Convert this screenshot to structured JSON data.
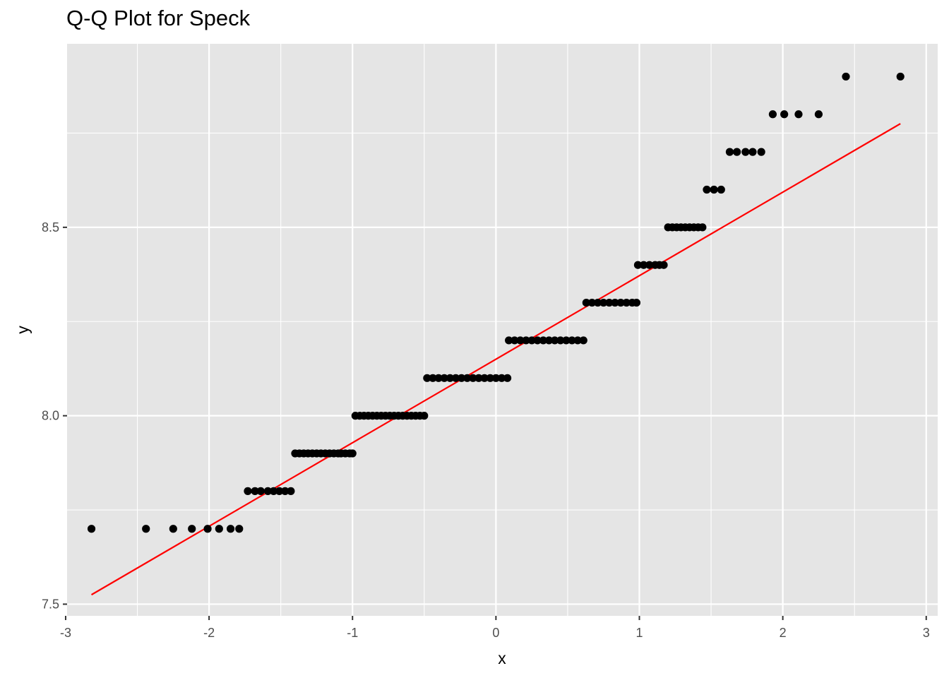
{
  "chart_data": {
    "type": "scatter",
    "title": "Q-Q Plot for Speck",
    "xlabel": "x",
    "ylabel": "y",
    "xlim": [
      -2.99,
      3.08
    ],
    "ylim": [
      7.469,
      8.987
    ],
    "x_ticks": [
      "-3",
      "-2",
      "-1",
      "0",
      "1",
      "2",
      "3"
    ],
    "y_ticks": [
      "7.5",
      "8.0",
      "8.5"
    ],
    "grid": true,
    "colors": {
      "panel": "#e5e5e5",
      "grid": "#ffffff",
      "points": "#000000",
      "line": "#ff0000"
    },
    "series": [
      {
        "type": "scatter",
        "points": [
          [
            -2.82,
            7.7
          ],
          [
            -2.44,
            7.7
          ],
          [
            -2.25,
            7.7
          ],
          [
            -2.12,
            7.7
          ],
          [
            -2.01,
            7.7
          ],
          [
            -1.93,
            7.7
          ],
          [
            -1.85,
            7.7
          ],
          [
            -1.79,
            7.7
          ],
          [
            -1.73,
            7.8
          ],
          [
            -1.68,
            7.8
          ],
          [
            -1.64,
            7.8
          ],
          [
            -1.59,
            7.8
          ],
          [
            -1.55,
            7.8
          ],
          [
            -1.51,
            7.8
          ],
          [
            -1.47,
            7.8
          ],
          [
            -1.43,
            7.8
          ],
          [
            -1.4,
            7.9
          ],
          [
            -1.37,
            7.9
          ],
          [
            -1.34,
            7.9
          ],
          [
            -1.31,
            7.9
          ],
          [
            -1.28,
            7.9
          ],
          [
            -1.25,
            7.9
          ],
          [
            -1.22,
            7.9
          ],
          [
            -1.19,
            7.9
          ],
          [
            -1.16,
            7.9
          ],
          [
            -1.13,
            7.9
          ],
          [
            -1.1,
            7.9
          ],
          [
            -1.08,
            7.9
          ],
          [
            -1.05,
            7.9
          ],
          [
            -1.02,
            7.9
          ],
          [
            -1.0,
            7.9
          ],
          [
            -0.98,
            8.0
          ],
          [
            -0.95,
            8.0
          ],
          [
            -0.92,
            8.0
          ],
          [
            -0.89,
            8.0
          ],
          [
            -0.86,
            8.0
          ],
          [
            -0.83,
            8.0
          ],
          [
            -0.8,
            8.0
          ],
          [
            -0.77,
            8.0
          ],
          [
            -0.74,
            8.0
          ],
          [
            -0.71,
            8.0
          ],
          [
            -0.68,
            8.0
          ],
          [
            -0.65,
            8.0
          ],
          [
            -0.62,
            8.0
          ],
          [
            -0.59,
            8.0
          ],
          [
            -0.56,
            8.0
          ],
          [
            -0.53,
            8.0
          ],
          [
            -0.5,
            8.0
          ],
          [
            -0.48,
            8.1
          ],
          [
            -0.44,
            8.1
          ],
          [
            -0.4,
            8.1
          ],
          [
            -0.36,
            8.1
          ],
          [
            -0.32,
            8.1
          ],
          [
            -0.28,
            8.1
          ],
          [
            -0.24,
            8.1
          ],
          [
            -0.2,
            8.1
          ],
          [
            -0.16,
            8.1
          ],
          [
            -0.12,
            8.1
          ],
          [
            -0.08,
            8.1
          ],
          [
            -0.04,
            8.1
          ],
          [
            0.0,
            8.1
          ],
          [
            0.04,
            8.1
          ],
          [
            0.08,
            8.1
          ],
          [
            0.09,
            8.2
          ],
          [
            0.13,
            8.2
          ],
          [
            0.17,
            8.2
          ],
          [
            0.21,
            8.2
          ],
          [
            0.25,
            8.2
          ],
          [
            0.29,
            8.2
          ],
          [
            0.33,
            8.2
          ],
          [
            0.37,
            8.2
          ],
          [
            0.41,
            8.2
          ],
          [
            0.45,
            8.2
          ],
          [
            0.49,
            8.2
          ],
          [
            0.53,
            8.2
          ],
          [
            0.57,
            8.2
          ],
          [
            0.61,
            8.2
          ],
          [
            0.63,
            8.3
          ],
          [
            0.67,
            8.3
          ],
          [
            0.71,
            8.3
          ],
          [
            0.75,
            8.3
          ],
          [
            0.79,
            8.3
          ],
          [
            0.83,
            8.3
          ],
          [
            0.87,
            8.3
          ],
          [
            0.91,
            8.3
          ],
          [
            0.95,
            8.3
          ],
          [
            0.98,
            8.3
          ],
          [
            0.99,
            8.4
          ],
          [
            1.03,
            8.4
          ],
          [
            1.07,
            8.4
          ],
          [
            1.11,
            8.4
          ],
          [
            1.14,
            8.4
          ],
          [
            1.17,
            8.4
          ],
          [
            1.2,
            8.5
          ],
          [
            1.23,
            8.5
          ],
          [
            1.26,
            8.5
          ],
          [
            1.29,
            8.5
          ],
          [
            1.32,
            8.5
          ],
          [
            1.35,
            8.5
          ],
          [
            1.38,
            8.5
          ],
          [
            1.41,
            8.5
          ],
          [
            1.44,
            8.5
          ],
          [
            1.47,
            8.6
          ],
          [
            1.52,
            8.6
          ],
          [
            1.57,
            8.6
          ],
          [
            1.63,
            8.7
          ],
          [
            1.68,
            8.7
          ],
          [
            1.74,
            8.7
          ],
          [
            1.79,
            8.7
          ],
          [
            1.85,
            8.7
          ],
          [
            1.93,
            8.8
          ],
          [
            2.01,
            8.8
          ],
          [
            2.11,
            8.8
          ],
          [
            2.25,
            8.8
          ],
          [
            2.44,
            8.9
          ],
          [
            2.82,
            8.9
          ]
        ]
      },
      {
        "type": "line",
        "points": [
          [
            -2.82,
            7.525
          ],
          [
            2.82,
            8.775
          ]
        ]
      }
    ]
  }
}
